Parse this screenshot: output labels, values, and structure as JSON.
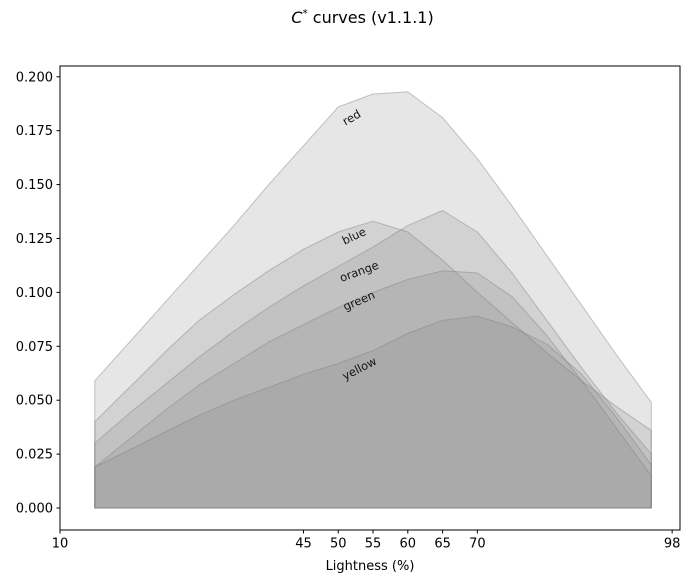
{
  "figure": {
    "title_parts": {
      "var": "C",
      "sup": "*",
      "rest": " curves (v1.1.1)"
    }
  },
  "chart_data": {
    "type": "area",
    "title": "C* curves (v1.1.1)",
    "xlabel": "Lightness (%)",
    "ylabel": "",
    "grid": false,
    "legend": "none (inline rotated labels on curves)",
    "xlim": [
      10,
      99.13
    ],
    "ylim": [
      -0.0102,
      0.205
    ],
    "xtick_values": [
      10,
      45,
      50,
      55,
      60,
      65,
      70,
      98
    ],
    "xtick_labels": [
      "10",
      "45",
      "50",
      "55",
      "60",
      "65",
      "70",
      "98"
    ],
    "ytick_values": [
      0.0,
      0.025,
      0.05,
      0.075,
      0.1,
      0.125,
      0.15,
      0.175,
      0.2
    ],
    "ytick_labels": [
      "0.000",
      "0.025",
      "0.050",
      "0.075",
      "0.100",
      "0.125",
      "0.150",
      "0.175",
      "0.200"
    ],
    "fill_color": "#808080",
    "fill_alpha": 0.2,
    "edge_alpha": 0.45,
    "x": [
      15,
      20,
      25,
      30,
      35,
      40,
      45,
      50,
      55,
      60,
      65,
      70,
      75,
      80,
      85,
      90,
      95
    ],
    "series": [
      {
        "name": "red",
        "values": [
          0.059,
          0.077,
          0.095,
          0.113,
          0.131,
          0.15,
          0.168,
          0.186,
          0.192,
          0.193,
          0.181,
          0.162,
          0.14,
          0.117,
          0.094,
          0.071,
          0.049
        ],
        "label": {
          "x": 52.2,
          "y": 0.1795,
          "rot": -30
        }
      },
      {
        "name": "blue",
        "values": [
          0.04,
          0.056,
          0.072,
          0.087,
          0.099,
          0.11,
          0.12,
          0.128,
          0.133,
          0.128,
          0.115,
          0.1,
          0.086,
          0.072,
          0.059,
          0.047,
          0.036
        ],
        "label": {
          "x": 52.5,
          "y": 0.1245,
          "rot": -25
        }
      },
      {
        "name": "orange",
        "values": [
          0.03,
          0.044,
          0.057,
          0.07,
          0.082,
          0.093,
          0.103,
          0.112,
          0.121,
          0.131,
          0.138,
          0.128,
          0.109,
          0.087,
          0.065,
          0.044,
          0.025
        ],
        "label": {
          "x": 53.2,
          "y": 0.108,
          "rot": -20
        }
      },
      {
        "name": "green",
        "values": [
          0.019,
          0.032,
          0.045,
          0.057,
          0.067,
          0.077,
          0.085,
          0.093,
          0.1,
          0.106,
          0.11,
          0.109,
          0.098,
          0.08,
          0.059,
          0.037,
          0.015
        ],
        "label": {
          "x": 53.2,
          "y": 0.0945,
          "rot": -23
        }
      },
      {
        "name": "yellow",
        "values": [
          0.019,
          0.027,
          0.035,
          0.043,
          0.05,
          0.056,
          0.062,
          0.067,
          0.073,
          0.081,
          0.087,
          0.089,
          0.084,
          0.076,
          0.062,
          0.042,
          0.02
        ],
        "label": {
          "x": 53.3,
          "y": 0.0631,
          "rot": -27
        }
      }
    ]
  }
}
